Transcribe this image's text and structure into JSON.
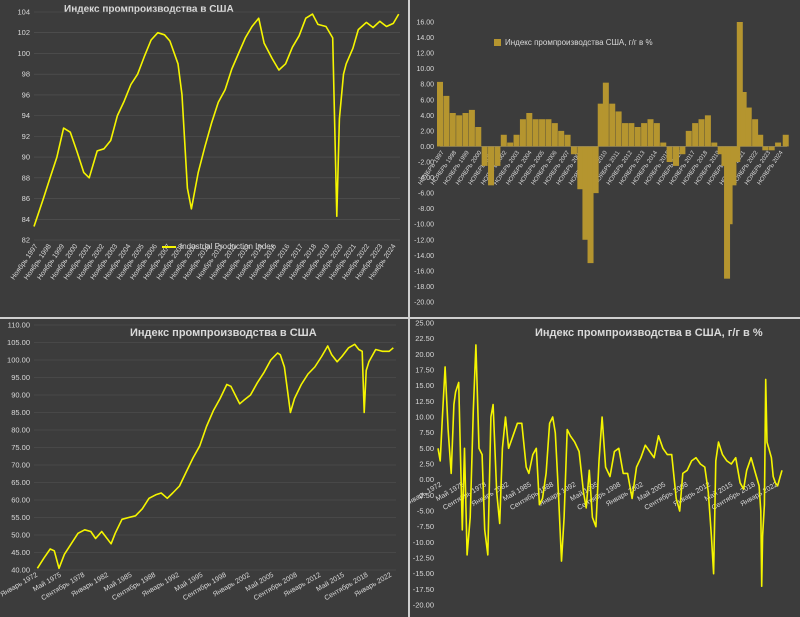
{
  "colors": {
    "line": "#f5f500",
    "bar": "#b5952f",
    "text": "#d9d9d9",
    "grid": "#555555",
    "background": "#3c3c3c"
  },
  "chart_data": [
    {
      "id": "top-left",
      "type": "line",
      "title": "Индекс промпроизводства в США",
      "legend": "Industrial Production Index",
      "legend_position": "bottom-center",
      "ylim": [
        82,
        104
      ],
      "yticks": [
        "82",
        "84",
        "86",
        "88",
        "90",
        "92",
        "94",
        "96",
        "98",
        "100",
        "102",
        "104"
      ],
      "xticks": [
        "Ноябрь 1997",
        "Ноябрь 1998",
        "Ноябрь 1999",
        "Ноябрь 2000",
        "Ноябрь 2001",
        "Ноябрь 2002",
        "Ноябрь 2003",
        "Ноябрь 2004",
        "Ноябрь 2005",
        "Ноябрь 2006",
        "Ноябрь 2007",
        "Ноябрь 2008",
        "Ноябрь 2009",
        "Ноябрь 2010",
        "Ноябрь 2011",
        "Ноябрь 2012",
        "Ноябрь 2013",
        "Ноябрь 2014",
        "Ноябрь 2015",
        "Ноябрь 2016",
        "Ноябрь 2017",
        "Ноябрь 2018",
        "Ноябрь 2019",
        "Ноябрь 2020",
        "Ноябрь 2021",
        "Ноябрь 2022",
        "Ноябрь 2023",
        "Ноябрь 2024"
      ],
      "grid": true,
      "x": [
        1997.8,
        1998.5,
        1999.0,
        1999.5,
        2000.0,
        2000.5,
        2001.0,
        2001.5,
        2001.9,
        2002.5,
        2003.0,
        2003.5,
        2004.0,
        2004.5,
        2005.0,
        2005.5,
        2006.0,
        2006.5,
        2007.0,
        2007.5,
        2007.9,
        2008.5,
        2008.8,
        2009.2,
        2009.5,
        2010.0,
        2010.5,
        2011.0,
        2011.5,
        2012.0,
        2012.5,
        2013.0,
        2013.5,
        2014.0,
        2014.5,
        2014.9,
        2015.5,
        2016.0,
        2016.5,
        2017.0,
        2017.5,
        2018.0,
        2018.5,
        2018.9,
        2019.5,
        2020.0,
        2020.3,
        2020.5,
        2020.8,
        2021.0,
        2021.5,
        2021.9,
        2022.5,
        2023.0,
        2023.5,
        2024.0,
        2024.5,
        2024.9
      ],
      "values": [
        83.3,
        86,
        88,
        90,
        92.8,
        92.4,
        90.5,
        88.5,
        88,
        90.6,
        90.8,
        91.6,
        94,
        95.4,
        97,
        98,
        99.7,
        101.3,
        102,
        101.8,
        101.2,
        99,
        96,
        87,
        85,
        88.5,
        91,
        93.3,
        95.3,
        96.5,
        98.5,
        100,
        101.5,
        102.6,
        103.4,
        101,
        99.5,
        98.4,
        99,
        100.6,
        101.7,
        103.4,
        103.8,
        102.8,
        102.6,
        101.5,
        84.3,
        93.7,
        98,
        99,
        100.5,
        102.3,
        103,
        102.5,
        103.1,
        102.6,
        102.9,
        103.8
      ]
    },
    {
      "id": "top-right",
      "type": "bar",
      "title": "",
      "legend": "Индекс промпроизводства США, г/г в %",
      "legend_position": "top-center",
      "ylim": [
        -20,
        16
      ],
      "yticks": [
        "16.00",
        "14.00",
        "12.00",
        "10.00",
        "8.00",
        "6.00",
        "4.00",
        "2.00",
        "0.00",
        "-2.00",
        "-4.00",
        "-6.00",
        "-8.00",
        "-10.00",
        "-12.00",
        "-14.00",
        "-16.00",
        "-18.00",
        "-20.00"
      ],
      "xticks": [
        "НОЯБРЬ 1997",
        "НОЯБРЬ 1998",
        "НОЯБРЬ 1999",
        "НОЯБРЬ 2000",
        "НОЯБРЬ 2001",
        "НОЯБРЬ 2002",
        "НОЯБРЬ 2003",
        "НОЯБРЬ 2004",
        "НОЯБРЬ 2005",
        "НОЯБРЬ 2006",
        "НОЯБРЬ 2007",
        "НОЯБРЬ 2008",
        "НОЯБРЬ 2009",
        "НОЯБРЬ 2010",
        "НОЯБРЬ 2011",
        "НОЯБРЬ 2012",
        "НОЯБРЬ 2013",
        "НОЯБРЬ 2014",
        "НОЯБРЬ 2015",
        "НОЯБРЬ 2016",
        "НОЯБРЬ 2017",
        "НОЯБРЬ 2018",
        "НОЯБРЬ 2019",
        "НОЯБРЬ 2020",
        "НОЯБРЬ 2021",
        "НОЯБРЬ 2022",
        "НОЯБРЬ 2023",
        "НОЯБРЬ 2024"
      ],
      "grid": false,
      "x": [
        1997.8,
        1998.3,
        1998.8,
        1999.3,
        1999.8,
        2000.3,
        2000.8,
        2001.3,
        2001.8,
        2002.3,
        2002.8,
        2003.3,
        2003.8,
        2004.3,
        2004.8,
        2005.3,
        2005.8,
        2006.3,
        2006.8,
        2007.3,
        2007.8,
        2008.3,
        2008.8,
        2009.2,
        2009.6,
        2010.0,
        2010.4,
        2010.8,
        2011.3,
        2011.8,
        2012.3,
        2012.8,
        2013.3,
        2013.8,
        2014.3,
        2014.8,
        2015.3,
        2015.8,
        2016.3,
        2016.8,
        2017.3,
        2017.8,
        2018.3,
        2018.8,
        2019.3,
        2019.8,
        2020.1,
        2020.3,
        2020.5,
        2020.8,
        2021.1,
        2021.3,
        2021.6,
        2022.0,
        2022.5,
        2022.9,
        2023.3,
        2023.8,
        2024.3,
        2024.9
      ],
      "values": [
        8.3,
        6.5,
        4.3,
        4.0,
        4.3,
        4.7,
        2.5,
        -2.5,
        -5.0,
        -2.5,
        1.5,
        0.5,
        1.5,
        3.5,
        4.3,
        3.5,
        3.5,
        3.5,
        3.0,
        2.0,
        1.5,
        -1.0,
        -5.5,
        -12.0,
        -15.0,
        -6.0,
        5.5,
        8.2,
        5.5,
        4.5,
        3.0,
        3.0,
        2.5,
        3.0,
        3.5,
        3.0,
        0.5,
        -2.0,
        -2.5,
        -1.0,
        2.0,
        3.0,
        3.5,
        4.0,
        0.5,
        -1.0,
        -2.5,
        -17.0,
        -10.0,
        -5.0,
        -2.0,
        16.0,
        7.0,
        5.0,
        3.5,
        1.5,
        -0.5,
        -0.5,
        0.5,
        1.5
      ]
    },
    {
      "id": "bottom-left",
      "type": "line",
      "title": "Индекс промпроизводства в США",
      "ylim": [
        40,
        110
      ],
      "yticks": [
        "110.00",
        "105.00",
        "100.00",
        "95.00",
        "90.00",
        "85.00",
        "80.00",
        "75.00",
        "70.00",
        "65.00",
        "60.00",
        "55.00",
        "50.00",
        "45.00",
        "40.00"
      ],
      "xticks": [
        "Январь 1972",
        "Май 1975",
        "Сентябрь 1978",
        "Январь 1982",
        "Май 1985",
        "Сентябрь 1988",
        "Январь 1992",
        "Май 1995",
        "Сентябрь 1998",
        "Январь 2002",
        "Май 2005",
        "Сентябрь 2008",
        "Январь 2012",
        "Май 2015",
        "Сентябрь 2018",
        "Январь 2022"
      ],
      "grid": true,
      "x": [
        1972.0,
        1973.0,
        1973.9,
        1974.5,
        1975.2,
        1976.0,
        1977.0,
        1978.0,
        1979.0,
        1979.9,
        1980.6,
        1981.5,
        1982.9,
        1983.5,
        1984.5,
        1985.5,
        1986.5,
        1987.5,
        1988.5,
        1989.5,
        1990.3,
        1991.2,
        1992.0,
        1993.0,
        1994.0,
        1995.0,
        1996.0,
        1997.0,
        1998.0,
        1999.0,
        2000.0,
        2000.6,
        2001.5,
        2001.9,
        2002.5,
        2003.5,
        2004.5,
        2005.5,
        2006.5,
        2007.5,
        2007.9,
        2008.5,
        2009.4,
        2010.0,
        2011.0,
        2012.0,
        2013.0,
        2014.0,
        2014.9,
        2015.5,
        2016.3,
        2017.0,
        2018.0,
        2018.9,
        2019.5,
        2020.0,
        2020.3,
        2020.6,
        2021.0,
        2022.0,
        2023.0,
        2024.0,
        2024.6
      ],
      "values": [
        40.5,
        43.5,
        46.0,
        45.5,
        40.5,
        44.5,
        47.5,
        50.5,
        51.5,
        51.0,
        49.0,
        51.0,
        47.5,
        50.5,
        54.5,
        55.0,
        55.5,
        57.5,
        60.5,
        61.5,
        62.0,
        60.5,
        62.0,
        64.0,
        68.0,
        72.0,
        75.5,
        81.0,
        85.5,
        89.0,
        93.0,
        92.5,
        89.0,
        87.5,
        88.5,
        90.0,
        93.5,
        96.5,
        100.0,
        102.0,
        101.5,
        98.0,
        85.0,
        89.0,
        93.0,
        96.0,
        98.0,
        101.0,
        104.0,
        101.5,
        99.5,
        101.0,
        103.5,
        104.5,
        103.0,
        102.5,
        85.0,
        97.0,
        99.5,
        103.0,
        102.5,
        102.5,
        103.5
      ]
    },
    {
      "id": "bottom-right",
      "type": "line",
      "title": "Индекс промпроизводства в США, г/г в %",
      "ylim": [
        -20,
        25
      ],
      "yticks": [
        "25.00",
        "22.50",
        "20.00",
        "17.50",
        "15.00",
        "12.50",
        "10.00",
        "7.50",
        "5.00",
        "2.50",
        "0.00",
        "-2.50",
        "-5.00",
        "-7.50",
        "-10.00",
        "-12.50",
        "-15.00",
        "-17.50",
        "-20.00"
      ],
      "xticks": [
        "Январь 1972",
        "Май 1975",
        "Сентябрь 1978",
        "Январь 1982",
        "Май 1985",
        "Сентябрь 1988",
        "Январь 1992",
        "Май 1995",
        "Сентябрь 1998",
        "Январь 2002",
        "Май 2005",
        "Сентябрь 2008",
        "Январь 2012",
        "Май 2015",
        "Сентябрь 2018",
        "Январь 2022"
      ],
      "grid": false,
      "x": [
        1947.0,
        1947.5,
        1948.0,
        1948.6,
        1949.3,
        1950.0,
        1950.6,
        1951.0,
        1951.7,
        1952.5,
        1953.0,
        1953.6,
        1954.3,
        1955.0,
        1955.6,
        1956.3,
        1957.0,
        1957.6,
        1958.3,
        1959.0,
        1959.5,
        1960.3,
        1961.0,
        1961.6,
        1962.3,
        1963.0,
        1964.0,
        1965.0,
        1966.0,
        1967.0,
        1967.6,
        1968.5,
        1969.3,
        1970.0,
        1970.7,
        1971.5,
        1972.3,
        1973.0,
        1973.6,
        1974.3,
        1975.0,
        1975.6,
        1976.3,
        1977.0,
        1978.0,
        1979.0,
        1980.0,
        1980.6,
        1981.3,
        1982.0,
        1982.8,
        1983.5,
        1984.2,
        1985.0,
        1986.0,
        1987.0,
        1988.0,
        1989.0,
        1990.0,
        1991.0,
        1992.0,
        1993.0,
        1994.0,
        1995.0,
        1996.0,
        1997.0,
        1998.0,
        1999.0,
        2000.0,
        2001.0,
        2001.8,
        2002.5,
        2003.5,
        2004.5,
        2005.5,
        2006.5,
        2007.5,
        2008.3,
        2009.0,
        2009.5,
        2010.0,
        2010.6,
        2011.5,
        2012.5,
        2013.5,
        2014.5,
        2015.5,
        2016.3,
        2017.0,
        2018.0,
        2019.0,
        2019.8,
        2020.2,
        2020.4,
        2020.6,
        2021.0,
        2021.3,
        2021.6,
        2022.0,
        2022.6,
        2023.0,
        2023.5,
        2024.0,
        2024.6,
        2025.0
      ],
      "values": [
        5.0,
        3.0,
        10.0,
        18.0,
        8.0,
        1.0,
        12.0,
        14.0,
        15.5,
        -8.0,
        5.0,
        -12.0,
        -6.0,
        11.0,
        21.5,
        5.0,
        4.0,
        -8.0,
        -12.0,
        10.0,
        12.0,
        -2.0,
        -7.0,
        5.0,
        10.0,
        5.0,
        7.0,
        9.0,
        9.0,
        2.0,
        1.0,
        4.0,
        5.0,
        -4.0,
        -3.0,
        1.0,
        9.0,
        10.0,
        7.5,
        -2.0,
        -13.0,
        -6.0,
        8.0,
        7.0,
        6.0,
        4.5,
        -2.0,
        -4.5,
        1.5,
        -6.0,
        -7.5,
        3.0,
        10.0,
        2.0,
        0.5,
        4.5,
        5.0,
        1.0,
        1.0,
        -3.0,
        2.0,
        3.5,
        5.5,
        4.5,
        3.5,
        7.0,
        5.0,
        4.0,
        4.0,
        -3.0,
        -5.0,
        1.0,
        1.5,
        3.0,
        3.5,
        2.5,
        2.0,
        -2.0,
        -9.0,
        -15.0,
        3.0,
        6.0,
        4.0,
        3.0,
        2.5,
        3.5,
        -0.5,
        -1.5,
        1.5,
        3.5,
        1.0,
        -1.0,
        -5.0,
        -17.0,
        -9.0,
        -4.0,
        16.0,
        6.0,
        5.0,
        3.5,
        0.5,
        -0.5,
        -1.0,
        0.5,
        1.5
      ]
    }
  ]
}
